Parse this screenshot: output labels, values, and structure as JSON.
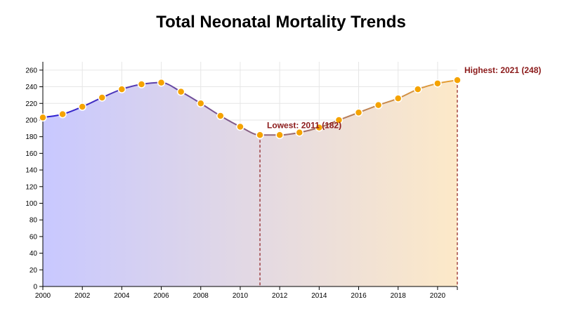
{
  "chart_data": {
    "type": "area",
    "title": "Total Neonatal Mortality Trends",
    "xlabel": "",
    "ylabel": "",
    "x": [
      2000,
      2001,
      2002,
      2003,
      2004,
      2005,
      2006,
      2007,
      2008,
      2009,
      2010,
      2011,
      2012,
      2013,
      2014,
      2015,
      2016,
      2017,
      2018,
      2019,
      2020,
      2021
    ],
    "series": [
      {
        "values": [
          203,
          207,
          216,
          227,
          237,
          243,
          245,
          234,
          220,
          205,
          192,
          182,
          182,
          185,
          191,
          200,
          209,
          218,
          226,
          237,
          244,
          248
        ]
      }
    ],
    "xlim": [
      2000,
      2021
    ],
    "ylim": [
      0,
      270
    ],
    "x_ticks": [
      "2000",
      "2002",
      "2004",
      "2006",
      "2008",
      "2010",
      "2012",
      "2014",
      "2016",
      "2018",
      "2020"
    ],
    "y_ticks": [
      "0",
      "20",
      "40",
      "60",
      "80",
      "100",
      "120",
      "140",
      "160",
      "180",
      "200",
      "220",
      "240",
      "260"
    ],
    "grid": true,
    "legend": "none",
    "annotations": [
      {
        "label": "Lowest: 2011 (182)",
        "x": 2011,
        "y": 182
      },
      {
        "label": "Highest: 2021 (248)",
        "x": 2021,
        "y": 248
      }
    ],
    "colors": {
      "gradient_start": "#2a1fd6",
      "gradient_end": "#e8a030",
      "fill_start": "#c8c8ff",
      "fill_end": "#fde9c8",
      "marker_fill": "#f5a300",
      "marker_stroke": "#ffffff",
      "annotation": "#8b1a1a",
      "grid": "#e6e6e6"
    }
  }
}
